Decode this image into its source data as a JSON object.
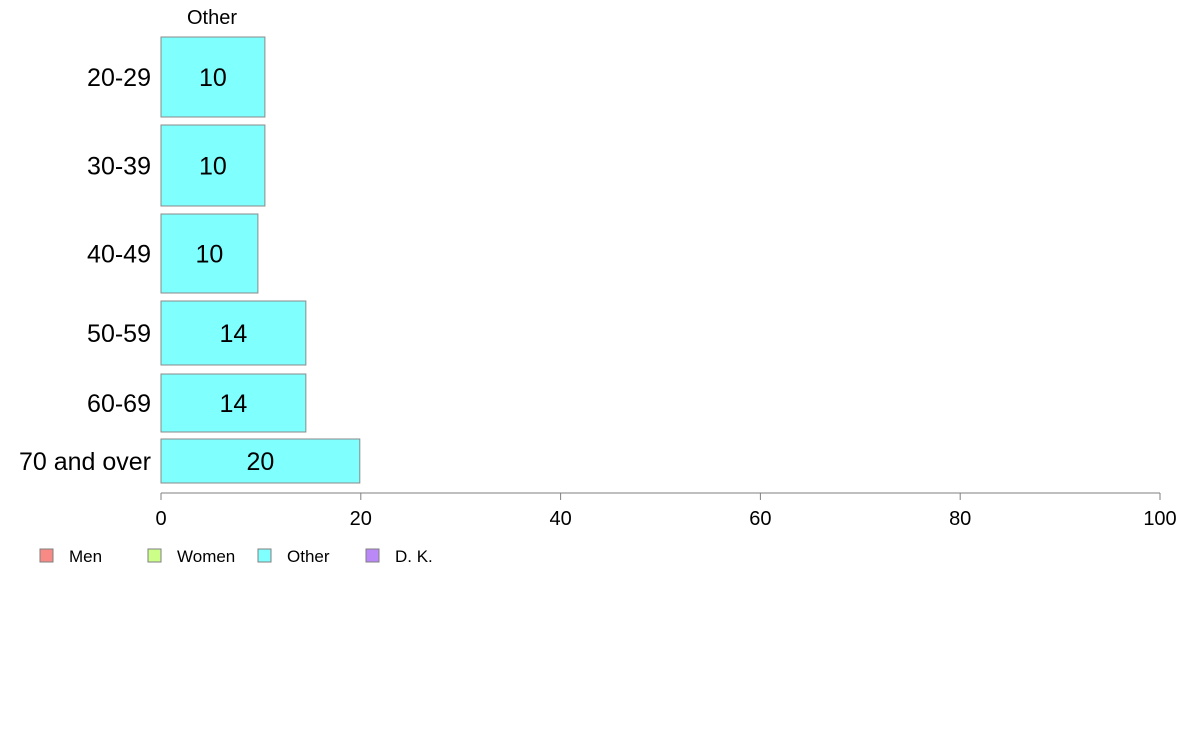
{
  "chart_data": {
    "type": "bar",
    "orientation": "horizontal",
    "panel_title": "Other",
    "categories": [
      "20-29",
      "30-39",
      "40-49",
      "50-59",
      "60-69",
      "70 and over"
    ],
    "series": [
      {
        "name": "Other",
        "color": "#80ffff",
        "values": [
          10.4,
          10.4,
          9.7,
          14.5,
          14.5,
          19.9
        ],
        "labels": [
          "10",
          "10",
          "10",
          "14",
          "14",
          "20"
        ]
      }
    ],
    "xlim": [
      0,
      100
    ],
    "xticks": [
      0,
      20,
      40,
      60,
      80,
      100
    ],
    "xtick_labels": [
      "0",
      "20",
      "40",
      "60",
      "80",
      "100"
    ],
    "grid": false,
    "legend": {
      "position": "bottom-left",
      "items": [
        {
          "label": "Men",
          "color": "#f88a86"
        },
        {
          "label": "Women",
          "color": "#ccff88"
        },
        {
          "label": "Other",
          "color": "#80ffff"
        },
        {
          "label": "D. K.",
          "color": "#bb88f8"
        }
      ]
    }
  }
}
